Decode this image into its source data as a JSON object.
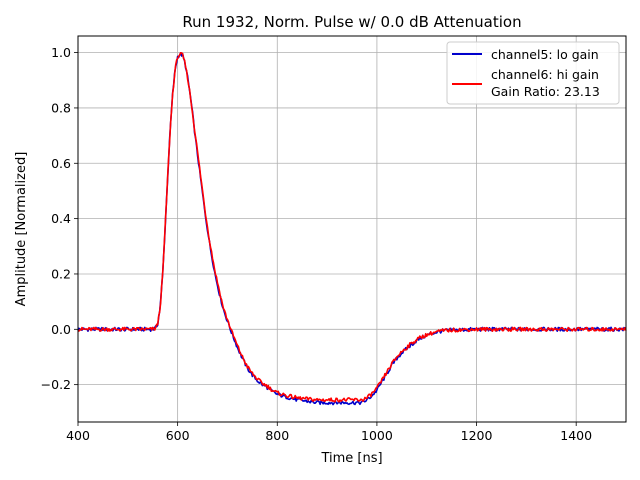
{
  "chart_data": {
    "type": "line",
    "title": "Run 1932, Norm. Pulse w/ 0.0 dB Attenuation",
    "xlabel": "Time [ns]",
    "ylabel": "Amplitude [Normalized]",
    "xlim": [
      400,
      1500
    ],
    "ylim": [
      -0.335,
      1.06
    ],
    "xticks": [
      400,
      600,
      800,
      1000,
      1200,
      1400
    ],
    "xtick_labels": [
      "400",
      "600",
      "800",
      "1000",
      "1200",
      "1400"
    ],
    "yticks": [
      -0.2,
      0.0,
      0.2,
      0.4,
      0.6,
      0.8,
      1.0
    ],
    "ytick_labels": [
      "−0.2",
      "0.0",
      "0.2",
      "0.4",
      "0.6",
      "0.8",
      "1.0"
    ],
    "grid": true,
    "legend_position": "top-right",
    "x": [
      400,
      520,
      545,
      555,
      560,
      565,
      570,
      575,
      580,
      585,
      590,
      595,
      600,
      605,
      610,
      615,
      620,
      625,
      630,
      635,
      640,
      645,
      650,
      655,
      660,
      665,
      670,
      675,
      680,
      685,
      690,
      695,
      700,
      710,
      720,
      730,
      740,
      750,
      760,
      770,
      780,
      790,
      800,
      820,
      840,
      860,
      880,
      900,
      920,
      940,
      960,
      970,
      980,
      990,
      1000,
      1010,
      1020,
      1030,
      1040,
      1050,
      1060,
      1070,
      1080,
      1090,
      1100,
      1110,
      1120,
      1130,
      1140,
      1150,
      1160,
      1180,
      1200,
      1250,
      1300,
      1400,
      1500
    ],
    "series": [
      {
        "name": "channel5: lo gain",
        "color": "#0000cc",
        "values": [
          0.0,
          0.0,
          0.0,
          0.002,
          0.02,
          0.08,
          0.2,
          0.37,
          0.55,
          0.72,
          0.85,
          0.94,
          0.985,
          0.995,
          0.99,
          0.96,
          0.91,
          0.85,
          0.78,
          0.7,
          0.63,
          0.56,
          0.49,
          0.42,
          0.36,
          0.3,
          0.25,
          0.2,
          0.16,
          0.12,
          0.085,
          0.055,
          0.03,
          -0.02,
          -0.065,
          -0.105,
          -0.14,
          -0.165,
          -0.185,
          -0.2,
          -0.21,
          -0.225,
          -0.235,
          -0.245,
          -0.255,
          -0.26,
          -0.265,
          -0.265,
          -0.265,
          -0.265,
          -0.265,
          -0.265,
          -0.255,
          -0.24,
          -0.22,
          -0.19,
          -0.16,
          -0.13,
          -0.105,
          -0.085,
          -0.07,
          -0.055,
          -0.04,
          -0.03,
          -0.022,
          -0.015,
          -0.01,
          -0.006,
          -0.004,
          -0.003,
          -0.002,
          -0.001,
          0.0,
          0.0,
          0.0,
          0.0,
          0.0
        ]
      },
      {
        "name": "channel6: hi gain",
        "legend_extra": "Gain Ratio: 23.13",
        "color": "#ff0000",
        "values": [
          0.0,
          0.0,
          0.0,
          0.002,
          0.02,
          0.08,
          0.2,
          0.37,
          0.55,
          0.72,
          0.85,
          0.94,
          0.985,
          0.995,
          0.99,
          0.96,
          0.91,
          0.85,
          0.78,
          0.71,
          0.64,
          0.57,
          0.5,
          0.43,
          0.37,
          0.31,
          0.26,
          0.21,
          0.17,
          0.13,
          0.09,
          0.06,
          0.035,
          -0.015,
          -0.06,
          -0.1,
          -0.135,
          -0.16,
          -0.18,
          -0.195,
          -0.205,
          -0.22,
          -0.23,
          -0.24,
          -0.248,
          -0.252,
          -0.255,
          -0.255,
          -0.255,
          -0.255,
          -0.255,
          -0.255,
          -0.248,
          -0.233,
          -0.213,
          -0.185,
          -0.155,
          -0.125,
          -0.1,
          -0.08,
          -0.065,
          -0.05,
          -0.037,
          -0.027,
          -0.02,
          -0.014,
          -0.009,
          -0.006,
          -0.004,
          -0.003,
          -0.002,
          -0.001,
          0.0,
          0.0,
          0.0,
          0.0,
          0.0
        ]
      }
    ]
  }
}
